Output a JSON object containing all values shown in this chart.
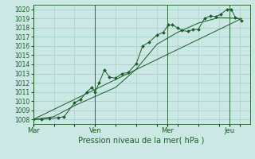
{
  "xlabel": "Pression niveau de la mer( hPa )",
  "ylim": [
    1007.5,
    1020.5
  ],
  "yticks": [
    1008,
    1009,
    1010,
    1011,
    1012,
    1013,
    1014,
    1015,
    1016,
    1017,
    1018,
    1019,
    1020
  ],
  "bg_color": "#cce8e4",
  "grid_color": "#99cccc",
  "line_color": "#1a5c28",
  "day_positions": [
    0.0,
    3.0,
    6.5,
    9.5
  ],
  "day_labels": [
    "Mar",
    "Ven",
    "Mer",
    "Jeu"
  ],
  "xlim": [
    0,
    10.5
  ],
  "series1": [
    [
      0.0,
      1008.0
    ],
    [
      0.4,
      1008.0
    ],
    [
      0.8,
      1008.1
    ],
    [
      1.2,
      1008.2
    ],
    [
      1.5,
      1008.3
    ],
    [
      2.0,
      1009.8
    ],
    [
      2.3,
      1010.2
    ],
    [
      2.6,
      1011.0
    ],
    [
      2.85,
      1011.5
    ],
    [
      3.0,
      1011.0
    ],
    [
      3.2,
      1012.0
    ],
    [
      3.45,
      1013.4
    ],
    [
      3.7,
      1012.6
    ],
    [
      4.0,
      1012.5
    ],
    [
      4.3,
      1013.0
    ],
    [
      4.6,
      1013.1
    ],
    [
      5.0,
      1014.1
    ],
    [
      5.3,
      1016.0
    ],
    [
      5.6,
      1016.4
    ],
    [
      6.0,
      1017.2
    ],
    [
      6.3,
      1017.5
    ],
    [
      6.55,
      1018.3
    ],
    [
      6.75,
      1018.3
    ],
    [
      7.0,
      1018.0
    ],
    [
      7.2,
      1017.7
    ],
    [
      7.5,
      1017.6
    ],
    [
      7.75,
      1017.8
    ],
    [
      8.0,
      1017.8
    ],
    [
      8.3,
      1019.0
    ],
    [
      8.6,
      1019.3
    ],
    [
      8.85,
      1019.2
    ],
    [
      9.1,
      1019.5
    ],
    [
      9.4,
      1020.0
    ],
    [
      9.6,
      1020.0
    ],
    [
      9.8,
      1019.1
    ],
    [
      10.1,
      1018.8
    ]
  ],
  "series2": [
    [
      0.0,
      1008.0
    ],
    [
      1.0,
      1008.3
    ],
    [
      2.0,
      1009.5
    ],
    [
      2.5,
      1010.0
    ],
    [
      3.0,
      1010.5
    ],
    [
      4.0,
      1011.5
    ],
    [
      5.0,
      1013.5
    ],
    [
      6.0,
      1016.2
    ],
    [
      7.0,
      1017.5
    ],
    [
      8.0,
      1018.5
    ],
    [
      9.0,
      1019.1
    ],
    [
      10.1,
      1019.0
    ]
  ],
  "series3": [
    [
      0.0,
      1008.0
    ],
    [
      10.1,
      1019.0
    ]
  ]
}
